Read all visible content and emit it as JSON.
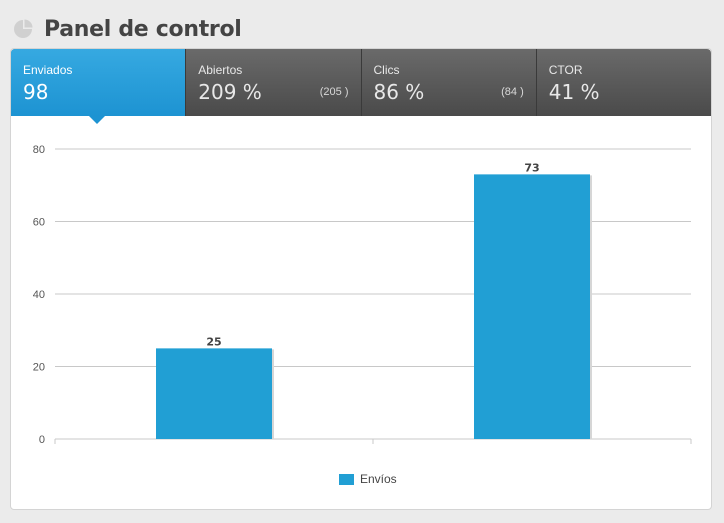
{
  "header": {
    "title": "Panel de control",
    "icon": "pie-chart-icon"
  },
  "tabs": [
    {
      "label": "Enviados",
      "value": "98",
      "count": ""
    },
    {
      "label": "Abiertos",
      "value": "209 %",
      "count": "(205 )"
    },
    {
      "label": "Clics",
      "value": "86 %",
      "count": "(84 )"
    },
    {
      "label": "CTOR",
      "value": "41 %",
      "count": ""
    }
  ],
  "colors": {
    "accent": "#219fd4",
    "tab_bar": "#555555"
  },
  "chart_data": {
    "type": "bar",
    "categories": [
      "",
      ""
    ],
    "series": [
      {
        "name": "Envíos",
        "values": [
          25,
          73
        ],
        "color": "#219fd4"
      }
    ],
    "ylim": [
      0,
      80
    ],
    "yticks": [
      0,
      20,
      40,
      60,
      80
    ],
    "grid": true,
    "legend": "bottom-center",
    "title": "",
    "xlabel": "",
    "ylabel": ""
  }
}
